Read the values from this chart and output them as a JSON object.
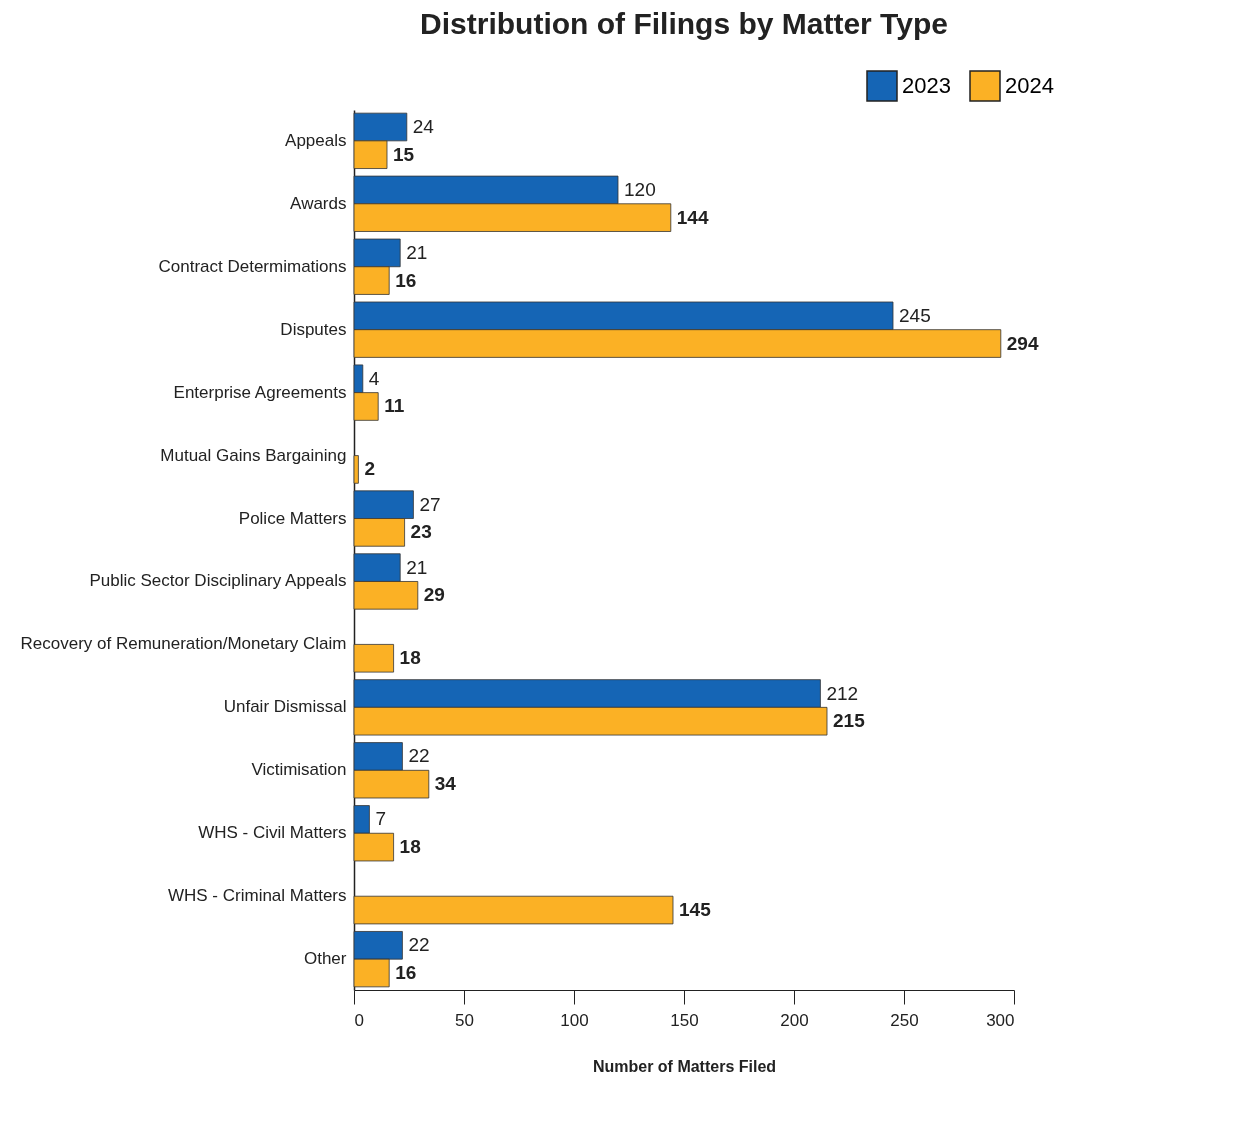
{
  "chart_data": {
    "type": "bar",
    "orientation": "horizontal",
    "title": "Distribution of Filings by Matter Type",
    "xlabel": "Number of Matters Filed",
    "categories": [
      "Appeals",
      "Awards",
      "Contract Determimations",
      "Disputes",
      "Enterprise Agreements",
      "Mutual Gains Bargaining",
      "Police Matters",
      "Public Sector Disciplinary Appeals",
      "Recovery of Remuneration/Monetary Claim",
      "Unfair Dismissal",
      "Victimisation",
      "WHS - Civil Matters",
      "WHS - Criminal Matters",
      "Other"
    ],
    "series": [
      {
        "name": "2023",
        "color": "#1565b5",
        "values": [
          24,
          120,
          21,
          245,
          4,
          null,
          27,
          21,
          null,
          212,
          22,
          7,
          null,
          22
        ]
      },
      {
        "name": "2024",
        "color": "#fbb125",
        "values": [
          15,
          144,
          16,
          294,
          11,
          2,
          23,
          29,
          18,
          215,
          34,
          18,
          145,
          16
        ]
      }
    ],
    "xlim": [
      0,
      300
    ],
    "xticks": [
      0,
      50,
      100,
      150,
      200,
      250,
      300
    ],
    "data_labels": true,
    "legend": "top right",
    "grid": false
  }
}
